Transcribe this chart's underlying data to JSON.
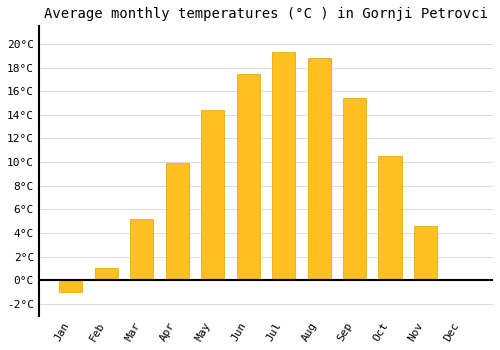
{
  "title": "Average monthly temperatures (°C ) in Gornji Petrovci",
  "months": [
    "Jan",
    "Feb",
    "Mar",
    "Apr",
    "May",
    "Jun",
    "Jul",
    "Aug",
    "Sep",
    "Oct",
    "Nov",
    "Dec"
  ],
  "values": [
    -1.0,
    1.0,
    5.2,
    9.9,
    14.4,
    17.5,
    19.3,
    18.8,
    15.4,
    10.5,
    4.6,
    0.0
  ],
  "bar_color": "#FFC020",
  "bar_edge_color": "#E8A000",
  "background_color": "#FFFFFF",
  "grid_color": "#CCCCCC",
  "yticks": [
    -2,
    0,
    2,
    4,
    6,
    8,
    10,
    12,
    14,
    16,
    18,
    20
  ],
  "ylim": [
    -3.0,
    21.5
  ],
  "title_fontsize": 10,
  "tick_fontsize": 8,
  "font_family": "monospace"
}
